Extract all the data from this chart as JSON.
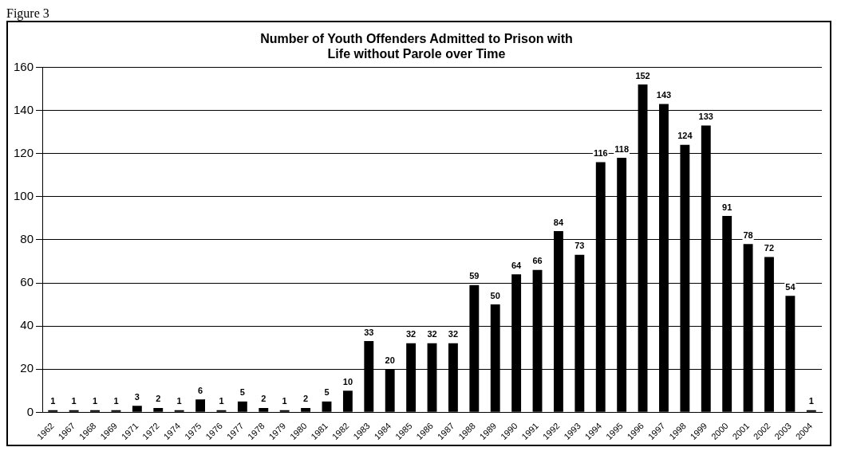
{
  "chart_data": {
    "type": "bar",
    "title": [
      "Number of Youth Offenders Admitted to Prison with",
      "Life without Parole over Time"
    ],
    "annotations": [
      "Figure 3"
    ],
    "categories": [
      "1962",
      "1967",
      "1968",
      "1969",
      "1971",
      "1972",
      "1974",
      "1975",
      "1976",
      "1977",
      "1978",
      "1979",
      "1980",
      "1981",
      "1982",
      "1983",
      "1984",
      "1985",
      "1986",
      "1987",
      "1988",
      "1989",
      "1990",
      "1991",
      "1992",
      "1993",
      "1994",
      "1995",
      "1996",
      "1997",
      "1998",
      "1999",
      "2000",
      "2001",
      "2002",
      "2003",
      "2004"
    ],
    "values": [
      1,
      1,
      1,
      1,
      3,
      2,
      1,
      6,
      1,
      5,
      2,
      1,
      2,
      5,
      10,
      33,
      20,
      32,
      32,
      32,
      59,
      50,
      64,
      66,
      84,
      73,
      116,
      118,
      152,
      143,
      124,
      133,
      91,
      78,
      72,
      54,
      1
    ],
    "color": "#000000",
    "ylim": [
      0,
      160
    ],
    "yticks": [
      0,
      20,
      40,
      60,
      80,
      100,
      120,
      140,
      160
    ],
    "grid": "y",
    "data_labels": true,
    "legend": false
  }
}
